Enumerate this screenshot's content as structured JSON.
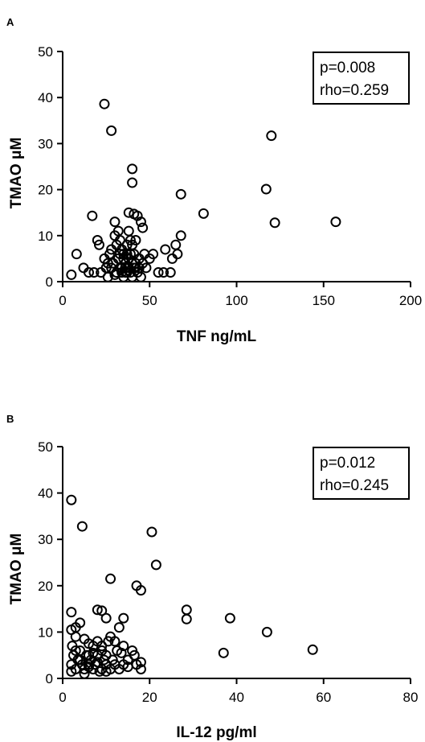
{
  "chart_data": [
    {
      "type": "scatter",
      "panel": "A",
      "xlabel": "TNF ng/mL",
      "ylabel": "TMAO μM",
      "xlim": [
        0,
        200
      ],
      "ylim": [
        0,
        50
      ],
      "xticks": [
        "0",
        "50",
        "100",
        "150",
        "200"
      ],
      "yticks": [
        "0",
        "10",
        "20",
        "30",
        "40",
        "50"
      ],
      "annotation": [
        "p=0.008",
        "rho=0.259"
      ],
      "legend_position": "top-right",
      "grid": false,
      "points": [
        [
          24,
          38.6
        ],
        [
          28,
          32.8
        ],
        [
          40,
          24.5
        ],
        [
          40,
          21.5
        ],
        [
          120,
          31.7
        ],
        [
          117,
          20.1
        ],
        [
          122,
          12.8
        ],
        [
          157,
          13
        ],
        [
          68,
          19
        ],
        [
          81,
          14.8
        ],
        [
          68,
          10
        ],
        [
          17,
          14.3
        ],
        [
          38,
          15
        ],
        [
          41,
          14.7
        ],
        [
          43,
          14.3
        ],
        [
          45,
          13
        ],
        [
          46,
          11.7
        ],
        [
          30,
          13
        ],
        [
          20,
          9
        ],
        [
          8,
          6
        ],
        [
          12,
          3
        ],
        [
          15,
          2
        ],
        [
          21,
          8
        ],
        [
          24,
          5
        ],
        [
          27,
          6
        ],
        [
          28,
          3
        ],
        [
          30,
          10
        ],
        [
          32,
          11
        ],
        [
          33,
          9
        ],
        [
          34,
          7
        ],
        [
          35,
          5
        ],
        [
          36,
          4
        ],
        [
          37,
          8
        ],
        [
          38,
          11
        ],
        [
          39,
          6
        ],
        [
          40,
          4
        ],
        [
          41,
          3
        ],
        [
          42,
          9
        ],
        [
          44,
          5
        ],
        [
          47,
          6
        ],
        [
          50,
          5
        ],
        [
          52,
          6
        ],
        [
          55,
          2
        ],
        [
          58,
          2
        ],
        [
          59,
          7
        ],
        [
          62,
          2
        ],
        [
          63,
          5
        ],
        [
          65,
          8
        ],
        [
          66,
          6
        ],
        [
          5,
          1.5
        ],
        [
          18,
          2
        ],
        [
          22,
          2
        ],
        [
          25,
          3
        ],
        [
          26,
          1
        ],
        [
          29,
          4
        ],
        [
          31,
          2
        ],
        [
          33,
          3
        ],
        [
          34,
          2
        ],
        [
          35,
          1
        ],
        [
          36,
          3
        ],
        [
          37,
          2
        ],
        [
          38,
          5
        ],
        [
          39,
          2
        ],
        [
          40,
          1
        ],
        [
          41,
          6
        ],
        [
          42,
          3
        ],
        [
          43,
          2
        ],
        [
          44,
          3
        ],
        [
          45,
          1
        ],
        [
          46,
          4
        ],
        [
          48,
          3
        ],
        [
          30,
          1.5
        ],
        [
          32,
          5
        ],
        [
          28,
          7
        ],
        [
          26,
          4
        ],
        [
          35,
          6
        ],
        [
          38,
          3
        ],
        [
          40,
          8
        ],
        [
          42,
          4
        ],
        [
          36,
          2
        ],
        [
          33,
          6
        ],
        [
          31,
          8
        ],
        [
          34,
          3
        ],
        [
          37,
          6
        ],
        [
          39,
          9
        ]
      ]
    },
    {
      "type": "scatter",
      "panel": "B",
      "xlabel": "IL-12 pg/ml",
      "ylabel": "TMAO μM",
      "xlim": [
        0,
        80
      ],
      "ylim": [
        0,
        50
      ],
      "xticks": [
        "0",
        "20",
        "40",
        "60",
        "80"
      ],
      "yticks": [
        "0",
        "10",
        "20",
        "30",
        "40",
        "50"
      ],
      "annotation": [
        "p=0.012",
        "rho=0.245"
      ],
      "legend_position": "top-right",
      "grid": false,
      "points": [
        [
          2,
          38.5
        ],
        [
          4.5,
          32.8
        ],
        [
          20.5,
          31.6
        ],
        [
          21.5,
          24.5
        ],
        [
          11,
          21.5
        ],
        [
          17,
          20
        ],
        [
          18,
          19
        ],
        [
          2,
          14.3
        ],
        [
          8,
          14.8
        ],
        [
          9,
          14.6
        ],
        [
          14,
          13
        ],
        [
          10,
          13
        ],
        [
          28.5,
          14.8
        ],
        [
          28.5,
          12.8
        ],
        [
          38.5,
          13
        ],
        [
          47,
          10
        ],
        [
          37,
          5.5
        ],
        [
          57.5,
          6.2
        ],
        [
          2,
          10.5
        ],
        [
          3,
          9
        ],
        [
          4,
          12
        ],
        [
          5,
          8.5
        ],
        [
          6,
          5
        ],
        [
          7,
          7
        ],
        [
          8,
          8
        ],
        [
          9,
          6
        ],
        [
          10,
          5
        ],
        [
          11,
          9
        ],
        [
          12,
          8
        ],
        [
          13,
          11
        ],
        [
          12.5,
          6
        ],
        [
          14,
          7
        ],
        [
          15,
          4
        ],
        [
          16,
          6
        ],
        [
          17,
          3
        ],
        [
          18,
          2
        ],
        [
          2,
          3
        ],
        [
          2.5,
          5
        ],
        [
          3,
          2
        ],
        [
          3.5,
          4
        ],
        [
          4,
          6
        ],
        [
          4.5,
          3
        ],
        [
          5,
          2
        ],
        [
          5.5,
          5
        ],
        [
          6,
          3
        ],
        [
          6.5,
          4
        ],
        [
          7,
          2
        ],
        [
          7.5,
          3
        ],
        [
          8,
          5
        ],
        [
          8.5,
          1.5
        ],
        [
          9,
          2
        ],
        [
          9.5,
          4
        ],
        [
          10,
          3
        ],
        [
          11,
          2
        ],
        [
          11.5,
          4
        ],
        [
          13,
          2
        ],
        [
          14,
          3
        ],
        [
          15,
          2.5
        ],
        [
          16.5,
          5
        ],
        [
          18,
          3.5
        ],
        [
          2,
          1.5
        ],
        [
          2.2,
          7
        ],
        [
          3,
          11
        ],
        [
          4,
          4
        ],
        [
          5,
          1
        ],
        [
          6,
          7.5
        ],
        [
          7,
          5.5
        ],
        [
          8,
          3.5
        ],
        [
          9,
          7
        ],
        [
          10,
          1.5
        ],
        [
          3,
          6
        ],
        [
          6,
          2.5
        ],
        [
          12,
          3
        ],
        [
          13.5,
          5.5
        ],
        [
          10.5,
          8
        ]
      ]
    }
  ]
}
